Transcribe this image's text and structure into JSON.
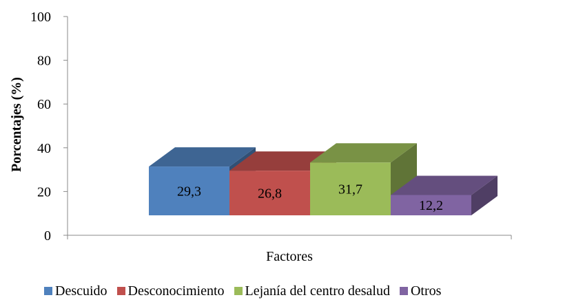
{
  "chart_data": {
    "type": "bar",
    "style": "3d-clustered-column",
    "categories": [
      "Factores"
    ],
    "series": [
      {
        "name": "Descuido",
        "values": [
          29.3
        ],
        "label": "29,3",
        "color": "#4F81BD"
      },
      {
        "name": "Desconocimiento",
        "values": [
          26.8
        ],
        "label": "26,8",
        "color": "#C0504D"
      },
      {
        "name": "Lejanía del centro desalud",
        "values": [
          31.7
        ],
        "label": "31,7",
        "color": "#9BBB59"
      },
      {
        "name": "Otros",
        "values": [
          12.2
        ],
        "label": "12,2",
        "color": "#8064A2"
      }
    ],
    "title": "",
    "xlabel": "Factores",
    "ylabel": "Porcentajes (%)",
    "ylim": [
      0,
      100
    ],
    "yticks": [
      "0",
      "20",
      "40",
      "60",
      "80",
      "100"
    ],
    "grid": false,
    "legend": "bottom"
  }
}
